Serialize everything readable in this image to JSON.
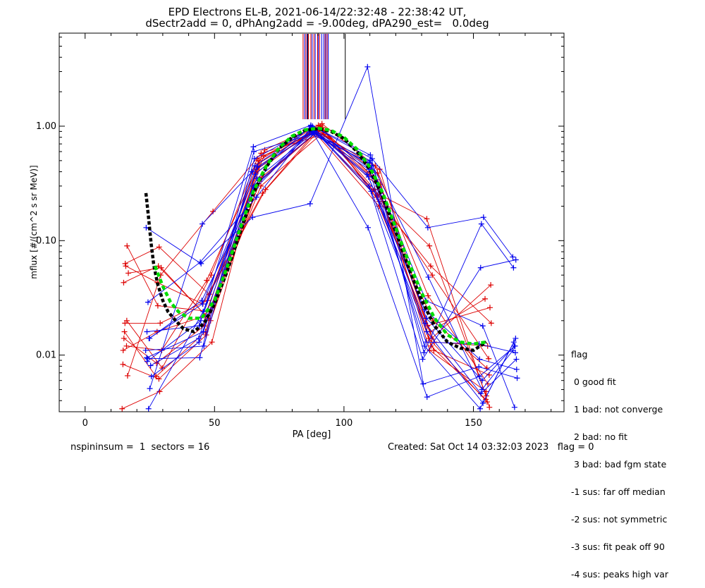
{
  "title_line1": "EPD Electrons EL-B, 2021-06-14/22:32:48 - 22:38:42 UT,",
  "title_line2": "dSectr2add = 0, dPhAng2add = -9.00deg, dPA290_est=   0.0deg",
  "footer_left": "nspininsum =  1  sectors = 16",
  "footer_right": "Created: Sat Oct 14 03:32:03 2023   flag = 0",
  "flag_legend": {
    "title": "flag",
    "items": [
      " 0 good fit",
      " 1 bad: not converge",
      " 2 bad: no fit",
      " 3 bad: bad fgm state",
      "-1 sus: far off median",
      "-2 sus: not symmetric",
      "-3 sus: fit peak off 90",
      "-4 sus: peaks high var"
    ]
  },
  "colors": {
    "red": "#dd0000",
    "blue": "#0000ee",
    "green": "#00dd00",
    "black": "#000000"
  },
  "chart_data": {
    "type": "line",
    "xlabel": "PA [deg]",
    "ylabel": "mflux [#/(cm^2 s sr MeV)]",
    "xlim": [
      -10,
      185
    ],
    "ylim": [
      0.0032,
      6.5
    ],
    "yscale": "log",
    "xticks": [
      0,
      50,
      100,
      150
    ],
    "yticks": [
      {
        "v": 0.01,
        "label": "0.01"
      },
      {
        "v": 0.1,
        "label": "0.10"
      },
      {
        "v": 1.0,
        "label": "1.00"
      }
    ],
    "series": [
      {
        "color": "red",
        "x": [
          14.6,
          28.5,
          46.8,
          66.3,
          88.9,
          113.2,
          132.7,
          155.3
        ],
        "y": [
          0.0083,
          0.0062,
          0.015,
          0.42,
          0.93,
          0.3,
          0.014,
          0.0039
        ]
      },
      {
        "color": "red",
        "x": [
          15.4,
          29.0,
          47.3,
          67.1,
          90.1,
          112.4,
          133.6,
          154.8
        ],
        "y": [
          0.019,
          0.019,
          0.03,
          0.5,
          1.02,
          0.34,
          0.012,
          0.0041
        ]
      },
      {
        "color": "red",
        "x": [
          16.2,
          28.1,
          48.1,
          68.3,
          91.2,
          111.8,
          134.1,
          155.9
        ],
        "y": [
          0.09,
          0.027,
          0.024,
          0.36,
          0.96,
          0.28,
          0.05,
          0.0093
        ]
      },
      {
        "color": "red",
        "x": [
          15.0,
          27.6,
          46.0,
          69.0,
          89.7,
          113.8,
          132.2,
          156.4
        ],
        "y": [
          0.014,
          0.0085,
          0.018,
          0.55,
          0.9,
          0.42,
          0.018,
          0.026
        ]
      },
      {
        "color": "red",
        "x": [
          16.7,
          29.4,
          47.6,
          67.9,
          92.0,
          112.9,
          133.0,
          155.0
        ],
        "y": [
          0.052,
          0.058,
          0.021,
          0.3,
          0.88,
          0.25,
          0.09,
          0.0044
        ]
      },
      {
        "color": "red",
        "x": [
          14.3,
          28.8,
          49.0,
          66.8,
          90.6,
          111.5,
          134.7,
          156.1
        ],
        "y": [
          0.0034,
          0.0048,
          0.013,
          0.47,
          0.98,
          0.36,
          0.011,
          0.0067
        ]
      },
      {
        "color": "red",
        "x": [
          15.7,
          27.9,
          45.5,
          68.6,
          89.2,
          113.5,
          133.3,
          154.5
        ],
        "y": [
          0.06,
          0.043,
          0.028,
          0.26,
          0.86,
          0.2,
          0.016,
          0.031
        ]
      },
      {
        "color": "red",
        "x": [
          16.0,
          29.6,
          47.0,
          69.4,
          91.5,
          112.1,
          132.5,
          155.6
        ],
        "y": [
          0.012,
          0.011,
          0.045,
          0.62,
          1.05,
          0.45,
          0.033,
          0.0056
        ]
      },
      {
        "color": "red",
        "x": [
          14.9,
          28.3,
          48.5,
          67.5,
          90.3,
          114.0,
          133.9,
          156.7
        ],
        "y": [
          0.043,
          0.06,
          0.02,
          0.33,
          0.92,
          0.31,
          0.014,
          0.041
        ]
      },
      {
        "color": "red",
        "x": [
          15.2,
          27.4,
          46.5,
          66.0,
          88.6,
          112.6,
          134.4,
          155.2
        ],
        "y": [
          0.016,
          0.0065,
          0.016,
          0.39,
          0.95,
          0.24,
          0.02,
          0.0077
        ]
      },
      {
        "color": "red",
        "x": [
          16.4,
          29.2,
          49.4,
          68.0,
          92.3,
          113.0,
          133.1,
          154.9
        ],
        "y": [
          0.0066,
          0.05,
          0.18,
          0.58,
          0.85,
          0.39,
          0.011,
          0.0048
        ]
      },
      {
        "color": "red",
        "x": [
          15.5,
          28.6,
          47.9,
          69.7,
          90.9,
          111.2,
          132.0,
          156.2
        ],
        "y": [
          0.063,
          0.088,
          0.034,
          0.28,
          1.0,
          0.27,
          0.155,
          0.0035
        ]
      },
      {
        "color": "red",
        "x": [
          14.7,
          27.8,
          46.3,
          67.3,
          89.4,
          112.3,
          134.9,
          155.5
        ],
        "y": [
          0.011,
          0.016,
          0.022,
          0.45,
          0.9,
          0.33,
          0.013,
          0.012
        ]
      },
      {
        "color": "red",
        "x": [
          16.1,
          29.8,
          48.7,
          66.5,
          91.8,
          113.6,
          133.5,
          156.9
        ],
        "y": [
          0.02,
          0.0077,
          0.05,
          0.52,
          0.97,
          0.22,
          0.06,
          0.019
        ]
      },
      {
        "color": "blue",
        "x": [
          24.1,
          44.3,
          65.2,
          87.5,
          109.8,
          131.1,
          152.6,
          166.3
        ],
        "y": [
          0.0093,
          0.0095,
          0.6,
          0.85,
          0.48,
          0.012,
          0.0034,
          0.014
        ]
      },
      {
        "color": "blue",
        "x": [
          24.9,
          45.1,
          66.0,
          88.3,
          110.4,
          131.9,
          153.4,
          165.8
        ],
        "y": [
          0.014,
          0.03,
          0.29,
          0.95,
          0.42,
          0.021,
          0.006,
          0.012
        ]
      },
      {
        "color": "blue",
        "x": [
          23.6,
          44.8,
          64.7,
          86.9,
          109.1,
          130.6,
          152.1,
          166.9
        ],
        "y": [
          0.13,
          0.063,
          0.16,
          0.21,
          3.3,
          0.0056,
          0.0079,
          0.0063
        ]
      },
      {
        "color": "blue",
        "x": [
          25.3,
          43.9,
          65.6,
          87.8,
          110.9,
          132.4,
          153.9,
          165.2
        ],
        "y": [
          0.0081,
          0.014,
          0.45,
          1.0,
          0.52,
          0.13,
          0.16,
          0.072
        ]
      },
      {
        "color": "blue",
        "x": [
          24.5,
          45.6,
          66.4,
          88.8,
          109.5,
          131.4,
          152.9,
          166.6
        ],
        "y": [
          0.0034,
          0.024,
          0.35,
          0.9,
          0.36,
          0.019,
          0.0046,
          0.0092
        ]
      },
      {
        "color": "blue",
        "x": [
          23.9,
          44.1,
          65.0,
          87.2,
          110.2,
          130.9,
          153.1,
          165.5
        ],
        "y": [
          0.016,
          0.018,
          0.66,
          1.02,
          0.56,
          0.0105,
          0.14,
          0.058
        ]
      },
      {
        "color": "blue",
        "x": [
          25.0,
          45.3,
          64.5,
          88.0,
          109.3,
          132.1,
          152.3,
          166.1
        ],
        "y": [
          0.0051,
          0.14,
          0.4,
          0.88,
          0.13,
          0.0043,
          0.0065,
          0.012
        ]
      },
      {
        "color": "blue",
        "x": [
          24.3,
          44.5,
          66.2,
          86.6,
          110.7,
          131.6,
          153.6,
          165.9
        ],
        "y": [
          0.029,
          0.065,
          0.24,
          0.93,
          0.45,
          0.03,
          0.018,
          0.0035
        ]
      },
      {
        "color": "blue",
        "x": [
          23.4,
          45.9,
          65.4,
          87.6,
          109.7,
          130.4,
          152.8,
          166.4
        ],
        "y": [
          0.011,
          0.012,
          0.52,
          0.97,
          0.3,
          0.0092,
          0.058,
          0.068
        ]
      },
      {
        "color": "blue",
        "x": [
          25.6,
          44.0,
          64.9,
          88.5,
          110.1,
          132.6,
          153.3,
          165.3
        ],
        "y": [
          0.0065,
          0.013,
          0.3,
          0.86,
          0.5,
          0.048,
          0.005,
          0.011
        ]
      },
      {
        "color": "blue",
        "x": [
          24.7,
          45.4,
          65.8,
          87.1,
          109.0,
          131.2,
          152.4,
          166.7
        ],
        "y": [
          0.014,
          0.028,
          0.38,
          0.99,
          0.38,
          0.025,
          0.0092,
          0.0075
        ]
      },
      {
        "color": "blue",
        "x": [
          24.0,
          44.7,
          66.6,
          88.1,
          110.5,
          132.0,
          153.7,
          165.6
        ],
        "y": [
          0.0088,
          0.02,
          0.44,
          0.94,
          0.27,
          0.016,
          0.0038,
          0.013
        ]
      },
      {
        "color": "blue",
        "x": [
          23.8,
          45.7,
          65.3,
          86.8,
          109.6,
          131.7,
          152.2,
          166.2
        ],
        "y": [
          0.0095,
          0.016,
          0.29,
          0.91,
          0.42,
          0.013,
          0.0125,
          0.0105
        ]
      }
    ],
    "fit_green": {
      "x": [
        27,
        30,
        33,
        36,
        40,
        45,
        50,
        55,
        60,
        65,
        70,
        75,
        80,
        85,
        90,
        95,
        100,
        105,
        110,
        115,
        120,
        125,
        130,
        135,
        140,
        145,
        150,
        155
      ],
      "y": [
        0.06,
        0.04,
        0.029,
        0.024,
        0.021,
        0.021,
        0.03,
        0.06,
        0.13,
        0.27,
        0.45,
        0.65,
        0.82,
        0.93,
        0.96,
        0.92,
        0.8,
        0.63,
        0.44,
        0.26,
        0.13,
        0.065,
        0.035,
        0.021,
        0.015,
        0.013,
        0.0125,
        0.013
      ]
    },
    "fit_black": {
      "x": [
        23.5,
        24.5,
        25.5,
        26.5,
        28,
        30,
        32,
        35,
        38,
        42,
        46,
        50,
        55,
        60,
        65,
        70,
        75,
        80,
        85,
        90,
        95,
        100,
        105,
        110,
        115,
        120,
        125,
        130,
        135,
        140,
        145,
        150,
        155
      ],
      "y": [
        0.26,
        0.16,
        0.095,
        0.062,
        0.042,
        0.03,
        0.024,
        0.02,
        0.017,
        0.016,
        0.019,
        0.028,
        0.055,
        0.12,
        0.26,
        0.44,
        0.64,
        0.8,
        0.92,
        0.95,
        0.9,
        0.78,
        0.6,
        0.42,
        0.24,
        0.12,
        0.058,
        0.03,
        0.018,
        0.013,
        0.0115,
        0.011,
        0.013
      ]
    },
    "vlines_red_x": [
      84.2,
      85.3,
      86.3,
      87.2,
      88.4,
      89.8,
      90.6,
      92.7,
      93.5
    ],
    "vlines_blue_x": [
      84.8,
      85.8,
      87.7,
      88.9,
      90.1,
      91.4,
      92.2,
      93.0,
      93.9
    ],
    "vlines_black_x": [
      86.0,
      100.5
    ],
    "vlines_ymin": 1.15
  }
}
